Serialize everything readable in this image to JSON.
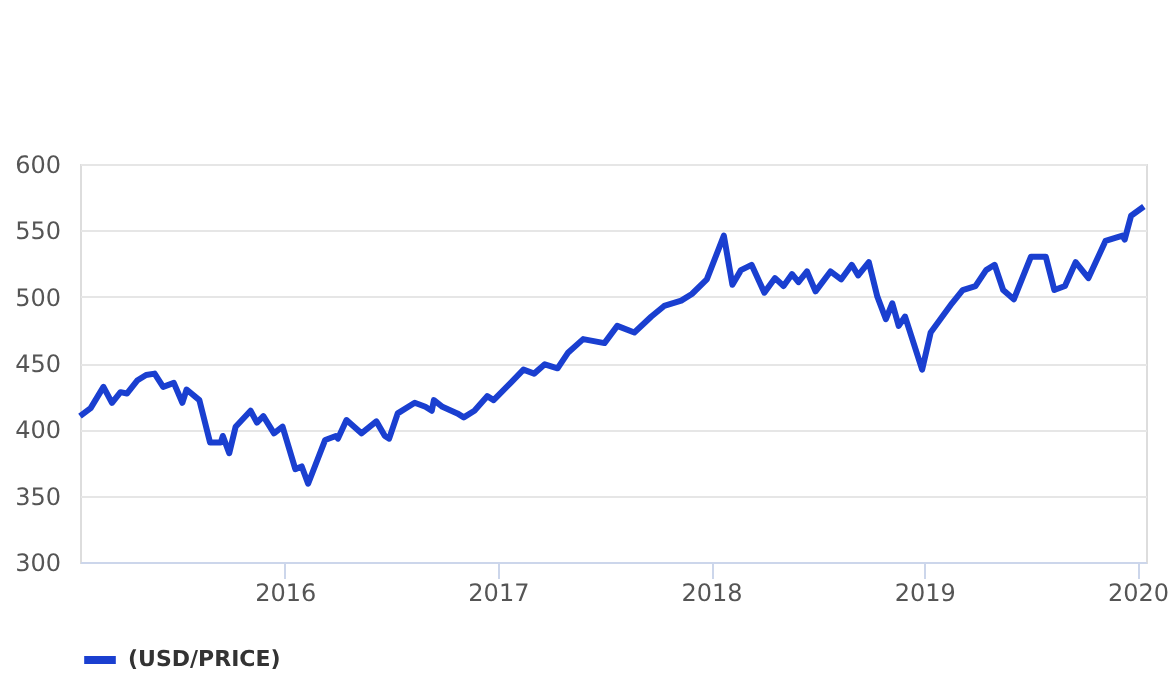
{
  "chart_data": {
    "type": "line",
    "x": [
      2015.04,
      2015.09,
      2015.15,
      2015.19,
      2015.23,
      2015.26,
      2015.31,
      2015.35,
      2015.39,
      2015.43,
      2015.48,
      2015.52,
      2015.54,
      2015.6,
      2015.65,
      2015.7,
      2015.71,
      2015.74,
      2015.77,
      2015.84,
      2015.87,
      2015.9,
      2015.95,
      2015.99,
      2016.05,
      2016.08,
      2016.11,
      2016.19,
      2016.24,
      2016.25,
      2016.29,
      2016.36,
      2016.43,
      2016.47,
      2016.49,
      2016.53,
      2016.61,
      2016.66,
      2016.69,
      2016.7,
      2016.74,
      2016.81,
      2016.84,
      2016.89,
      2016.95,
      2016.98,
      2017.06,
      2017.12,
      2017.17,
      2017.22,
      2017.28,
      2017.33,
      2017.4,
      2017.5,
      2017.56,
      2017.64,
      2017.72,
      2017.78,
      2017.86,
      2017.91,
      2017.98,
      2018.06,
      2018.1,
      2018.14,
      2018.19,
      2018.25,
      2018.3,
      2018.34,
      2018.38,
      2018.41,
      2018.45,
      2018.49,
      2018.56,
      2018.61,
      2018.66,
      2018.69,
      2018.74,
      2018.78,
      2018.82,
      2018.85,
      2018.88,
      2018.91,
      2018.99,
      2019.03,
      2019.13,
      2019.18,
      2019.24,
      2019.29,
      2019.33,
      2019.37,
      2019.42,
      2019.5,
      2019.57,
      2019.61,
      2019.66,
      2019.71,
      2019.77,
      2019.85,
      2019.93,
      2019.94,
      2019.97,
      2020.03
    ],
    "series": [
      {
        "name": "(USD/PRICE)",
        "color": "#1a3fd0",
        "values": [
          410,
          416,
          432,
          420,
          428,
          427,
          437,
          441,
          442,
          432,
          435,
          420,
          430,
          422,
          390,
          390,
          395,
          382,
          402,
          414,
          405,
          410,
          397,
          402,
          370,
          372,
          359,
          392,
          395,
          393,
          407,
          397,
          406,
          395,
          393,
          412,
          420,
          417,
          414,
          422,
          417,
          412,
          409,
          414,
          425,
          422,
          435,
          445,
          442,
          449,
          446,
          458,
          468,
          465,
          478,
          473,
          485,
          493,
          497,
          502,
          513,
          546,
          509,
          520,
          524,
          503,
          514,
          508,
          517,
          511,
          519,
          504,
          519,
          513,
          524,
          516,
          526,
          500,
          483,
          495,
          478,
          485,
          445,
          473,
          495,
          505,
          508,
          520,
          524,
          505,
          498,
          530,
          530,
          505,
          508,
          526,
          514,
          542,
          546,
          543,
          561,
          568
        ]
      }
    ],
    "xlim": [
      2015.04,
      2020.04
    ],
    "xticks": [
      2016,
      2017,
      2018,
      2019,
      2020
    ],
    "ylim": [
      300,
      600
    ],
    "yticks": [
      300,
      350,
      400,
      450,
      500,
      550,
      600
    ],
    "grid": "y",
    "legend": "bottom",
    "marker": "none",
    "line_style": "solid"
  }
}
